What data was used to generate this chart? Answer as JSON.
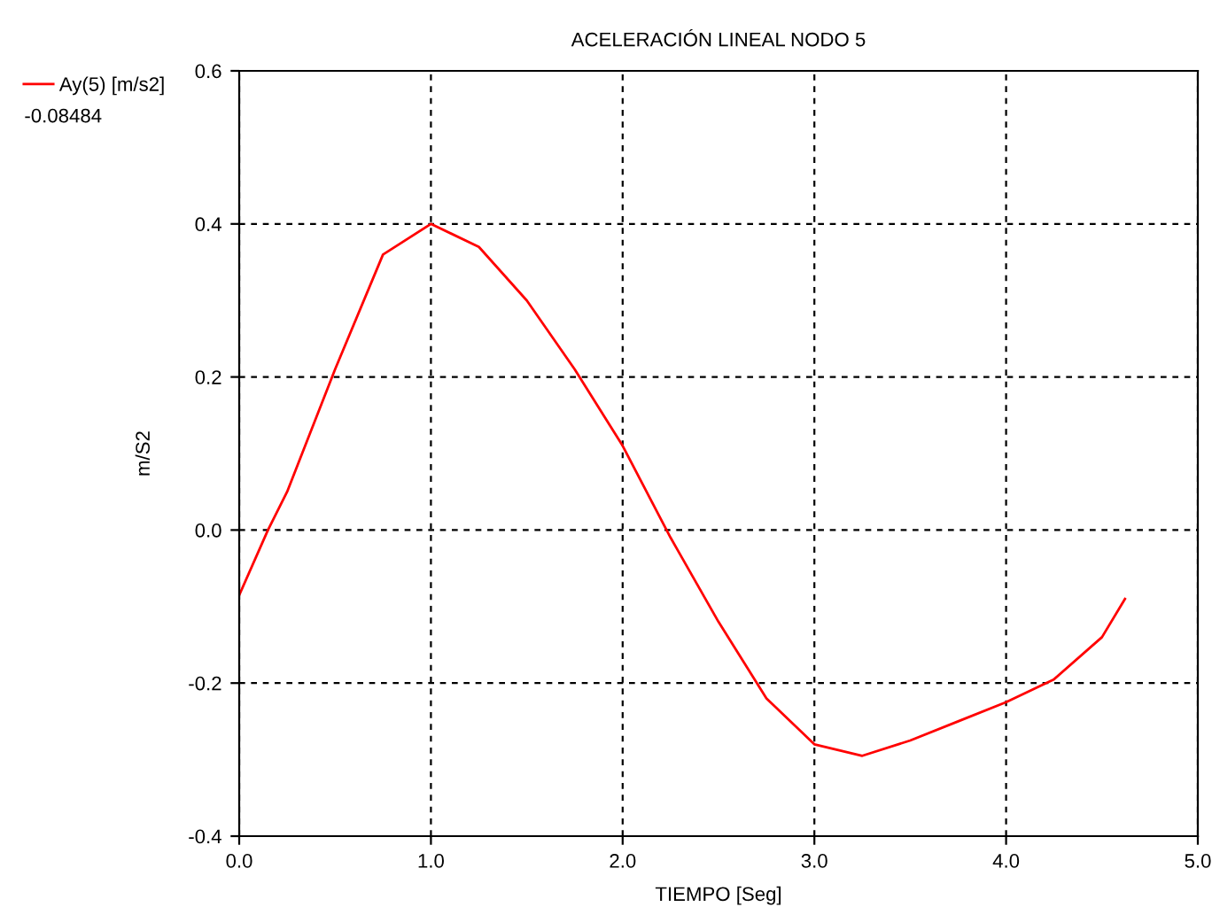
{
  "chart_data": {
    "type": "line",
    "title": "ACELERACIÓN LINEAL NODO 5",
    "xlabel": "TIEMPO [Seg]",
    "ylabel": "m/S2",
    "annotations": [
      "-0.08484"
    ],
    "series": [
      {
        "name": "Ay(5) [m/s2]",
        "color": "#ff0000",
        "x": [
          0,
          0.15,
          0.25,
          0.5,
          0.75,
          1.0,
          1.25,
          1.5,
          1.75,
          2.0,
          2.25,
          2.5,
          2.75,
          3.0,
          3.25,
          3.5,
          3.75,
          4.0,
          4.25,
          4.5,
          4.62
        ],
        "values": [
          -0.085,
          0.0,
          0.05,
          0.21,
          0.36,
          0.4,
          0.37,
          0.3,
          0.21,
          0.11,
          -0.01,
          -0.12,
          -0.22,
          -0.28,
          -0.295,
          -0.275,
          -0.25,
          -0.225,
          -0.195,
          -0.14,
          -0.09
        ]
      }
    ],
    "xlim": [
      0,
      5
    ],
    "ylim": [
      -0.4,
      0.6
    ],
    "xticks": [
      {
        "value": 0,
        "label": "0.0"
      },
      {
        "value": 1,
        "label": "1.0"
      },
      {
        "value": 2,
        "label": "2.0"
      },
      {
        "value": 3,
        "label": "3.0"
      },
      {
        "value": 4,
        "label": "4.0"
      },
      {
        "value": 5,
        "label": "5.0"
      }
    ],
    "yticks": [
      {
        "value": -0.4,
        "label": "-0.4"
      },
      {
        "value": -0.2,
        "label": "-0.2"
      },
      {
        "value": 0,
        "label": "0.0"
      },
      {
        "value": 0.2,
        "label": "0.2"
      },
      {
        "value": 0.4,
        "label": "0.4"
      },
      {
        "value": 0.6,
        "label": "0.6"
      }
    ],
    "grid": true,
    "legend": "top left",
    "marker": "none",
    "line_style": "solid"
  }
}
